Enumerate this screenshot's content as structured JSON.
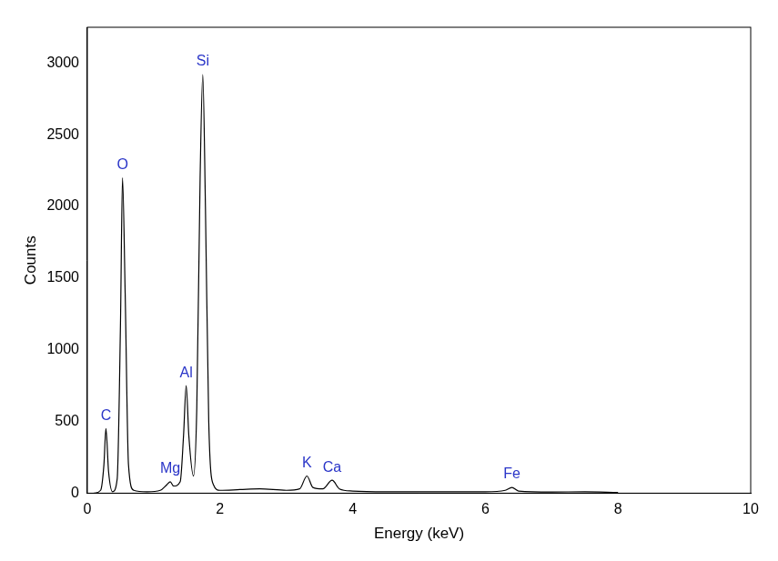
{
  "chart_data": {
    "type": "line",
    "x_label": "Energy (keV)",
    "y_label": "Counts",
    "x": [
      0.1,
      0.2,
      0.25,
      0.28,
      0.32,
      0.38,
      0.45,
      0.5,
      0.53,
      0.57,
      0.62,
      0.7,
      0.9,
      1.1,
      1.2,
      1.25,
      1.3,
      1.4,
      1.45,
      1.49,
      1.53,
      1.6,
      1.65,
      1.7,
      1.74,
      1.78,
      1.83,
      1.9,
      2.0,
      2.3,
      2.6,
      3.0,
      3.2,
      3.31,
      3.4,
      3.55,
      3.69,
      3.8,
      4.0,
      4.5,
      5.0,
      6.0,
      6.3,
      6.4,
      6.5,
      7.0,
      7.5,
      8.0
    ],
    "values": [
      0,
      20,
      200,
      450,
      150,
      10,
      100,
      1200,
      2200,
      1400,
      200,
      20,
      10,
      20,
      60,
      80,
      50,
      80,
      400,
      750,
      400,
      120,
      600,
      2200,
      2920,
      2000,
      500,
      60,
      20,
      25,
      30,
      20,
      30,
      120,
      40,
      30,
      90,
      30,
      15,
      10,
      10,
      10,
      20,
      40,
      15,
      8,
      10,
      5
    ],
    "color": "#000000",
    "xlim": [
      0,
      10
    ],
    "xticks": [
      0,
      2,
      4,
      6,
      8,
      10
    ],
    "ylim": [
      0,
      3250
    ],
    "yticks": [
      0,
      500,
      1000,
      1500,
      2000,
      2500,
      3000
    ],
    "grid": false,
    "annotations": [
      {
        "text": "C",
        "x": 0.28,
        "y": 450
      },
      {
        "text": "O",
        "x": 0.53,
        "y": 2200
      },
      {
        "text": "Mg",
        "x": 1.25,
        "y": 80
      },
      {
        "text": "Al",
        "x": 1.49,
        "y": 750
      },
      {
        "text": "Si",
        "x": 1.74,
        "y": 2920
      },
      {
        "text": "K",
        "x": 3.31,
        "y": 120
      },
      {
        "text": "Ca",
        "x": 3.69,
        "y": 90
      },
      {
        "text": "Fe",
        "x": 6.4,
        "y": 40
      }
    ]
  }
}
